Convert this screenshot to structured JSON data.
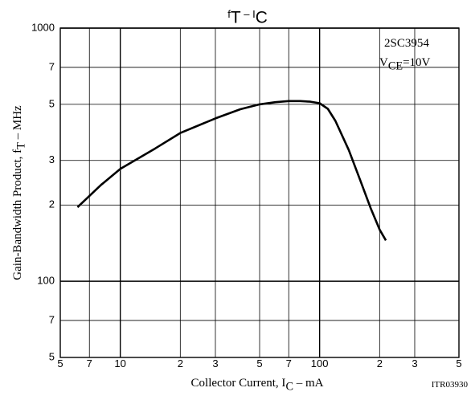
{
  "chart_data": {
    "type": "line",
    "title": [
      "f",
      "T",
      " – I",
      "C"
    ],
    "xlabel": [
      "Collector Current, I",
      "C",
      " – mA"
    ],
    "ylabel": [
      "Gain-Bandwidth Product, f",
      "T",
      " – MHz"
    ],
    "annotations": {
      "part": "2SC3954",
      "condition": [
        "V",
        "CE",
        "=10V"
      ],
      "code": "ITR03930"
    },
    "xscale": "log",
    "yscale": "log",
    "grid": true,
    "xlim": [
      5,
      500
    ],
    "ylim": [
      50,
      1000
    ],
    "xticks": [
      5,
      7,
      10,
      {
        "value": 20,
        "label": "2"
      },
      {
        "value": 30,
        "label": "3"
      },
      {
        "value": 50,
        "label": "5"
      },
      {
        "value": 70,
        "label": "7"
      },
      100,
      {
        "value": 200,
        "label": "2"
      },
      {
        "value": 300,
        "label": "3"
      },
      {
        "value": 500,
        "label": "5"
      }
    ],
    "yticks": [
      {
        "value": 50,
        "label": "5"
      },
      {
        "value": 70,
        "label": "7"
      },
      100,
      {
        "value": 200,
        "label": "2"
      },
      {
        "value": 300,
        "label": "3"
      },
      {
        "value": 500,
        "label": "5"
      },
      {
        "value": 700,
        "label": "7"
      },
      1000
    ],
    "x": [
      6.1,
      8,
      10,
      15,
      20,
      30,
      40,
      50,
      60,
      70,
      80,
      90,
      100,
      110,
      120,
      140,
      160,
      180,
      200,
      215
    ],
    "series": [
      {
        "color": "#000000",
        "values": [
          196,
          240,
          278,
          335,
          385,
          440,
          478,
          500,
          510,
          515,
          515,
          512,
          505,
          480,
          430,
          330,
          250,
          195,
          160,
          145
        ]
      }
    ]
  }
}
